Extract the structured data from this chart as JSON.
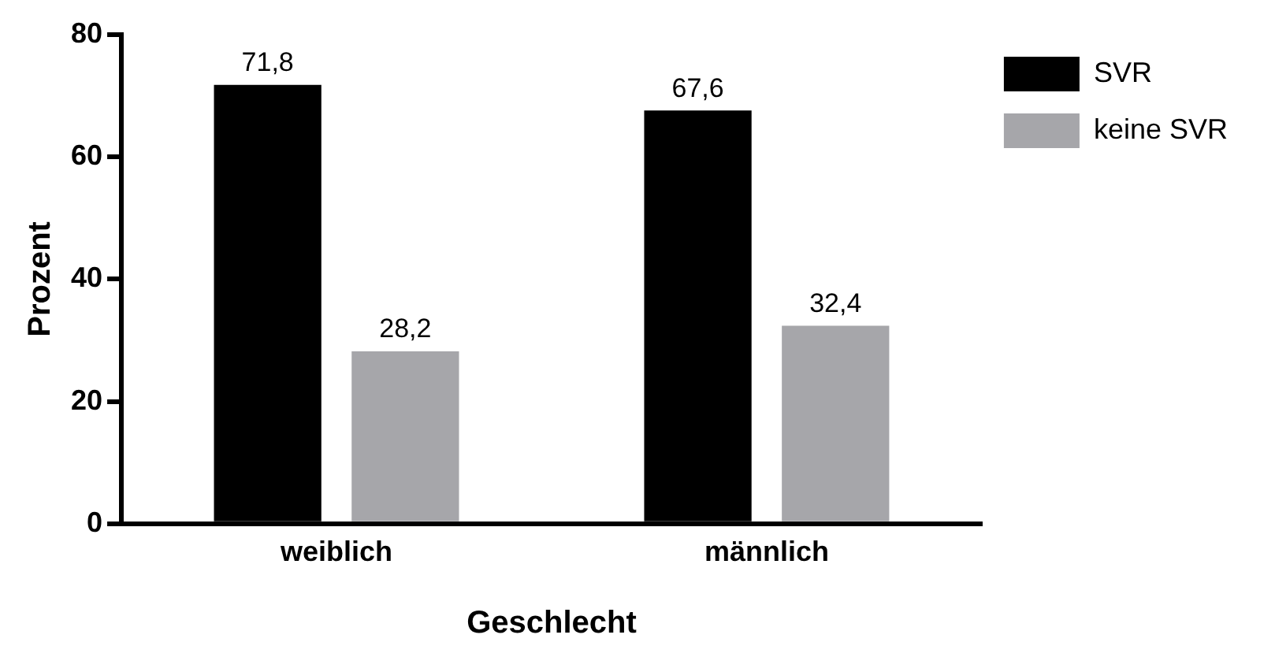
{
  "chart_data": {
    "type": "bar",
    "xlabel": "Geschlecht",
    "ylabel": "Prozent",
    "categories": [
      "weiblich",
      "männlich"
    ],
    "series": [
      {
        "name": "SVR",
        "color": "#000000",
        "values": [
          71.8,
          67.6
        ],
        "value_labels": [
          "71,8",
          "67,6"
        ]
      },
      {
        "name": "keine SVR",
        "color": "#a6a6aa",
        "values": [
          28.2,
          32.4
        ],
        "value_labels": [
          "28,2",
          "32,4"
        ]
      }
    ],
    "ylim": [
      0,
      80
    ],
    "yticks": [
      0,
      20,
      40,
      60,
      80
    ],
    "grid": false,
    "legend": "top right"
  }
}
